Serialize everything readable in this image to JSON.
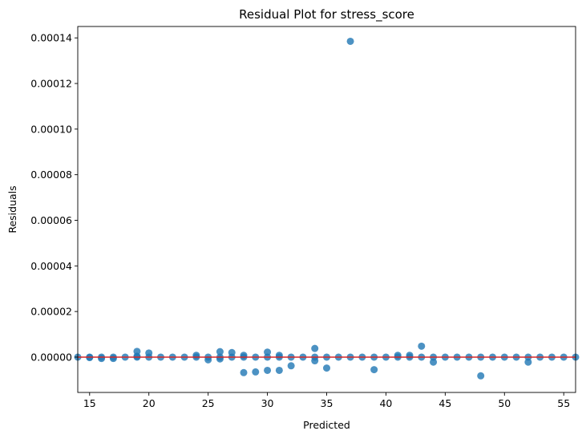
{
  "chart_data": {
    "type": "scatter",
    "title": "Residual Plot for stress_score",
    "xlabel": "Predicted",
    "ylabel": "Residuals",
    "xlim": [
      14,
      56
    ],
    "ylim": [
      -1.55e-05,
      0.000145
    ],
    "xticks": [
      15,
      20,
      25,
      30,
      35,
      40,
      45,
      50,
      55
    ],
    "xtick_labels": [
      "15",
      "20",
      "25",
      "30",
      "35",
      "40",
      "45",
      "50",
      "55"
    ],
    "yticks": [
      0,
      2e-05,
      4e-05,
      6e-05,
      8e-05,
      0.0001,
      0.00012,
      0.00014
    ],
    "ytick_labels": [
      "0.00000",
      "0.00002",
      "0.00004",
      "0.00006",
      "0.00008",
      "0.00010",
      "0.00012",
      "0.00014"
    ],
    "grid": false,
    "reference_line": {
      "y": 0,
      "color": "#d62728"
    },
    "point_color": "#1f77b4",
    "series": [
      {
        "points": [
          [
            14,
            0
          ],
          [
            15,
            0
          ],
          [
            15,
            -2e-07
          ],
          [
            16,
            0
          ],
          [
            16,
            -6e-07
          ],
          [
            17,
            0
          ],
          [
            17,
            -6e-07
          ],
          [
            18,
            0
          ],
          [
            19,
            0
          ],
          [
            19,
            2.5e-06
          ],
          [
            19,
            4e-07
          ],
          [
            20,
            0
          ],
          [
            20,
            1.8e-06
          ],
          [
            21,
            0
          ],
          [
            22,
            0
          ],
          [
            23,
            0
          ],
          [
            24,
            0
          ],
          [
            24,
            8e-07
          ],
          [
            25,
            0
          ],
          [
            25,
            -1.2e-06
          ],
          [
            26,
            0
          ],
          [
            26,
            2.4e-06
          ],
          [
            26,
            -8e-07
          ],
          [
            27,
            0
          ],
          [
            27,
            2e-06
          ],
          [
            28,
            0
          ],
          [
            28,
            8e-07
          ],
          [
            28,
            -6.8e-06
          ],
          [
            29,
            0
          ],
          [
            29,
            -6.5e-06
          ],
          [
            30,
            0
          ],
          [
            30,
            2.2e-06
          ],
          [
            30,
            -5.8e-06
          ],
          [
            31,
            0
          ],
          [
            31,
            8e-07
          ],
          [
            31,
            -5.8e-06
          ],
          [
            32,
            0
          ],
          [
            32,
            -3.8e-06
          ],
          [
            33,
            0
          ],
          [
            34,
            0
          ],
          [
            34,
            3.8e-06
          ],
          [
            34,
            -1.6e-06
          ],
          [
            35,
            0
          ],
          [
            35,
            -4.8e-06
          ],
          [
            36,
            0
          ],
          [
            37,
            0
          ],
          [
            37,
            0.0001385
          ],
          [
            38,
            0
          ],
          [
            39,
            0
          ],
          [
            39,
            -5.5e-06
          ],
          [
            40,
            0
          ],
          [
            41,
            0
          ],
          [
            41,
            8e-07
          ],
          [
            42,
            0
          ],
          [
            42,
            8e-07
          ],
          [
            43,
            0
          ],
          [
            43,
            4.8e-06
          ],
          [
            44,
            0
          ],
          [
            44,
            -2.2e-06
          ],
          [
            45,
            0
          ],
          [
            46,
            0
          ],
          [
            47,
            0
          ],
          [
            48,
            0
          ],
          [
            48,
            -8.2e-06
          ],
          [
            49,
            0
          ],
          [
            50,
            0
          ],
          [
            51,
            0
          ],
          [
            52,
            0
          ],
          [
            52,
            -2.2e-06
          ],
          [
            53,
            0
          ],
          [
            54,
            0
          ],
          [
            55,
            0
          ],
          [
            56,
            0
          ]
        ]
      }
    ]
  }
}
